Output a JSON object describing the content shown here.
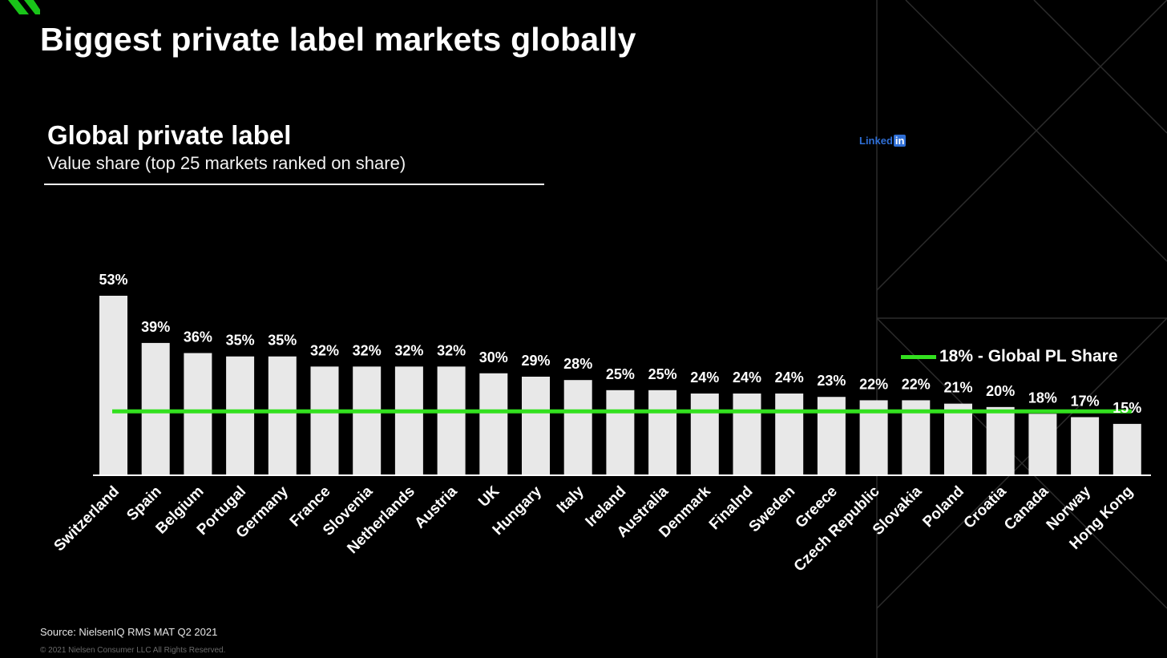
{
  "slide": {
    "title": "Biggest private label markets globally"
  },
  "chart_header": {
    "title": "Global private label",
    "subtitle": "Value share (top 25 markets ranked on share)"
  },
  "watermark": {
    "brand_text": "Linked",
    "brand_box": "in"
  },
  "legend": {
    "label": "18% - Global PL Share"
  },
  "footer": {
    "source": "Source: NielsenIQ RMS MAT Q2 2021",
    "copyright": "© 2021 Nielsen Consumer LLC All Rights Reserved."
  },
  "colors": {
    "background": "#000000",
    "bar": "#e8e8e8",
    "reference_line": "#33e01f",
    "accent_green": "#19c419",
    "text": "#ffffff"
  },
  "chart_data": {
    "type": "bar",
    "title": "Global private label",
    "subtitle": "Value share (top 25 markets ranked on share)",
    "xlabel": "",
    "ylabel": "",
    "unit": "%",
    "ylim": [
      0,
      53
    ],
    "grid": false,
    "categories": [
      "Switzerland",
      "Spain",
      "Belgium",
      "Portugal",
      "Germany",
      "France",
      "Slovenia",
      "Netherlands",
      "Austria",
      "UK",
      "Hungary",
      "Italy",
      "Ireland",
      "Australia",
      "Denmark",
      "Finalnd",
      "Sweden",
      "Greece",
      "Czech Republic",
      "Slovakia",
      "Poland",
      "Croatia",
      "Canada",
      "Norway",
      "Hong Kong"
    ],
    "values": [
      53,
      39,
      36,
      35,
      35,
      32,
      32,
      32,
      32,
      30,
      29,
      28,
      25,
      25,
      24,
      24,
      24,
      23,
      22,
      22,
      21,
      20,
      18,
      17,
      15
    ],
    "labels": [
      "53%",
      "39%",
      "36%",
      "35%",
      "35%",
      "32%",
      "32%",
      "32%",
      "32%",
      "30%",
      "29%",
      "28%",
      "25%",
      "25%",
      "24%",
      "24%",
      "24%",
      "23%",
      "22%",
      "22%",
      "21%",
      "20%",
      "18%",
      "17%",
      "15%"
    ],
    "reference_line": {
      "value": 18,
      "label": "18% - Global PL Share"
    }
  }
}
